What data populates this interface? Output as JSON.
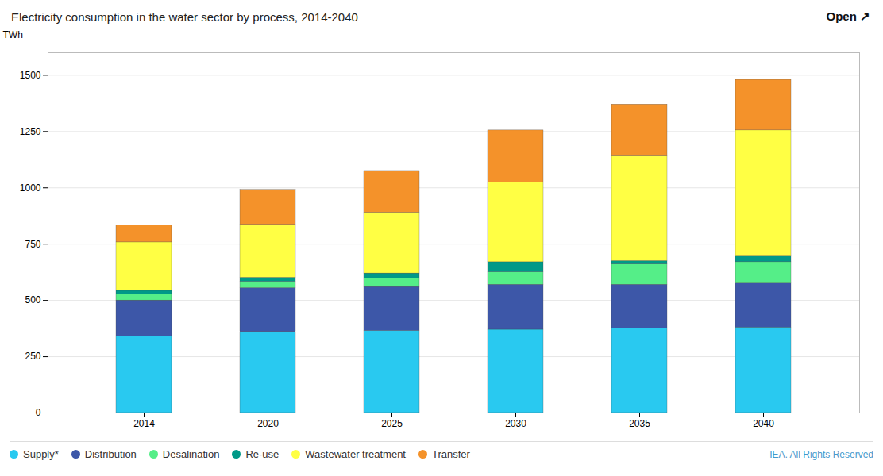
{
  "chart_data": {
    "type": "bar",
    "stacked": true,
    "title": "Electricity consumption in the water sector by process, 2014-2040",
    "ylabel": "TWh",
    "categories": [
      "2014",
      "2020",
      "2025",
      "2030",
      "2035",
      "2040"
    ],
    "series": [
      {
        "name": "Supply*",
        "color": "#29C9F0",
        "values": [
          340,
          360,
          365,
          370,
          375,
          380
        ]
      },
      {
        "name": "Distribution",
        "color": "#3D57A8",
        "values": [
          160,
          195,
          195,
          200,
          195,
          195
        ]
      },
      {
        "name": "Desalination",
        "color": "#55EE88",
        "values": [
          28,
          28,
          38,
          55,
          90,
          95
        ]
      },
      {
        "name": "Re-use",
        "color": "#009988",
        "values": [
          15,
          18,
          22,
          45,
          15,
          25
        ]
      },
      {
        "name": "Wastewater treatment",
        "color": "#FFFF44",
        "values": [
          215,
          235,
          270,
          355,
          465,
          560
        ]
      },
      {
        "name": "Transfer",
        "color": "#F4922A",
        "values": [
          75,
          155,
          185,
          230,
          230,
          225
        ]
      }
    ],
    "ylim": [
      0,
      1600
    ],
    "yticks": [
      0,
      250,
      500,
      750,
      1000,
      1250,
      1500
    ],
    "grid": true,
    "legend": "bottom",
    "annotations": [
      "Open ↗",
      "IEA. All Rights Reserved"
    ]
  }
}
